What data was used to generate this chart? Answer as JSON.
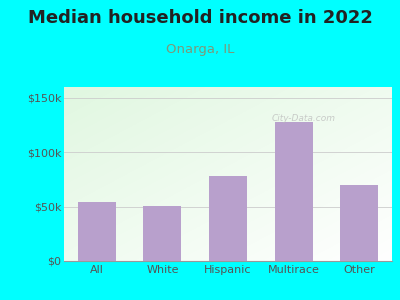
{
  "title": "Median household income in 2022",
  "subtitle": "Onarga, IL",
  "categories": [
    "All",
    "White",
    "Hispanic",
    "Multirace",
    "Other"
  ],
  "values": [
    54000,
    51000,
    78000,
    128000,
    70000
  ],
  "bar_color": "#b8a0cc",
  "title_fontsize": 13,
  "subtitle_fontsize": 9.5,
  "title_color": "#222222",
  "subtitle_color": "#7a9a7a",
  "tick_color": "#555555",
  "background_outer": "#00ffff",
  "ylim": [
    0,
    160000
  ],
  "yticks": [
    0,
    50000,
    100000,
    150000
  ],
  "ytick_labels": [
    "$0",
    "$50k",
    "$100k",
    "$150k"
  ],
  "watermark": "City-Data.com"
}
